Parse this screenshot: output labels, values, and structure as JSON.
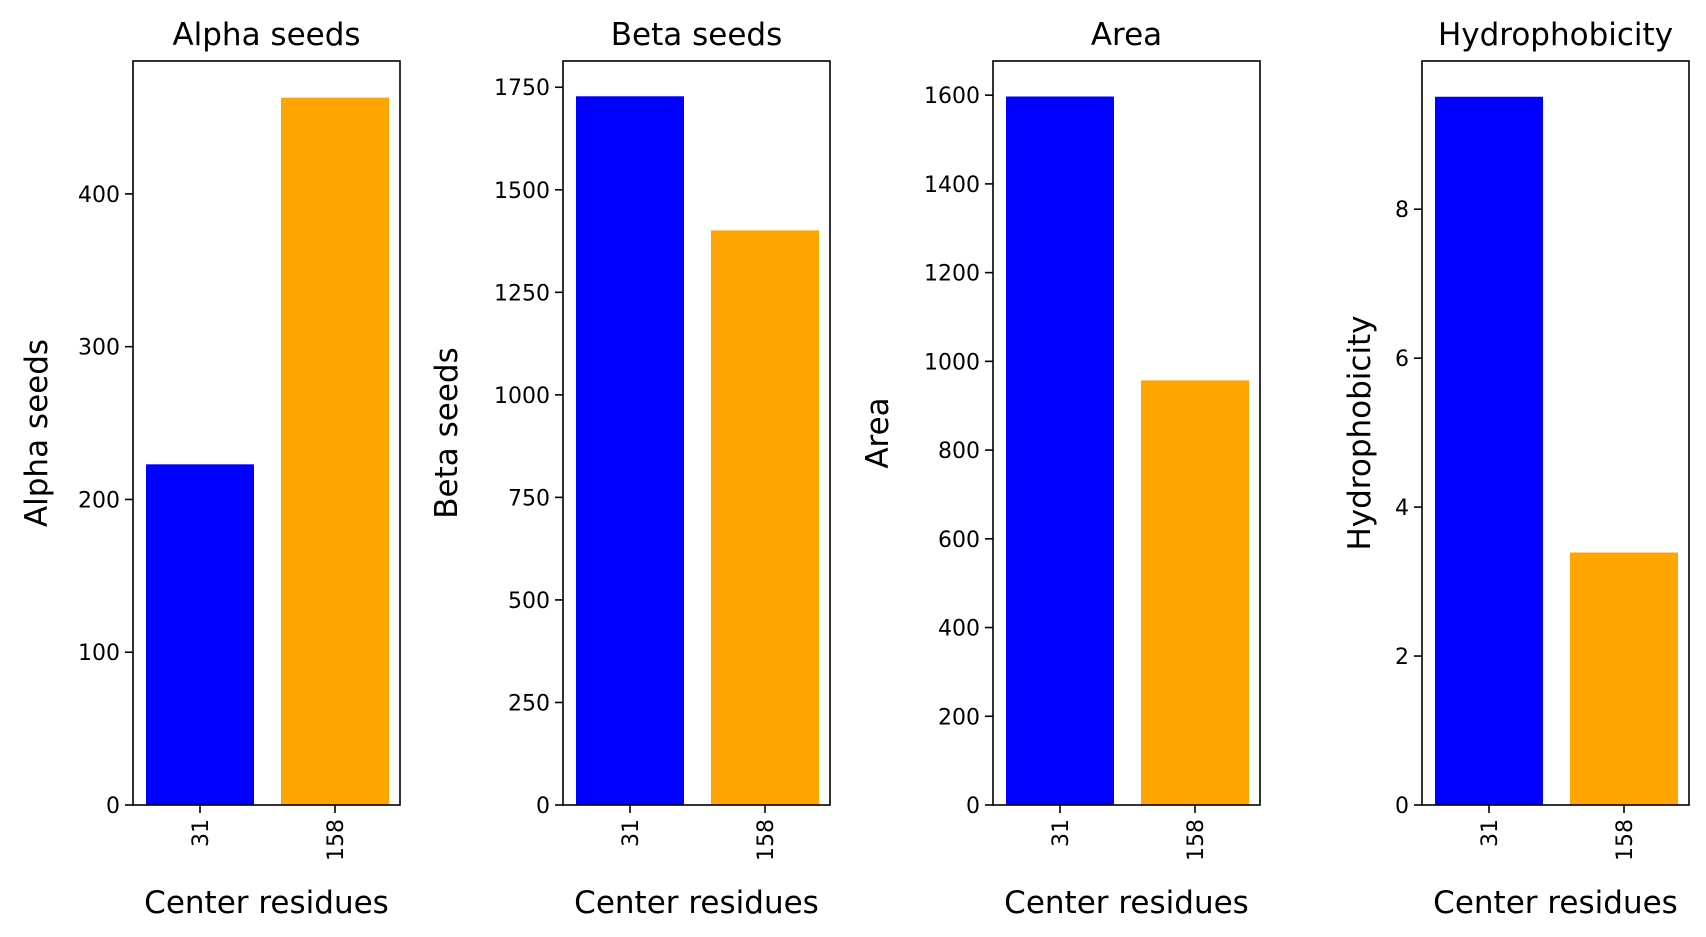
{
  "chart_data": [
    {
      "type": "bar",
      "title": "Alpha seeds",
      "xlabel": "Center residues",
      "ylabel": "Alpha seeds",
      "categories": [
        "31",
        "158"
      ],
      "values": [
        223,
        463
      ],
      "colors": [
        "#0000ff",
        "#ffa500"
      ],
      "ylim": [
        0,
        487
      ],
      "yticks": [
        0,
        100,
        200,
        300,
        400
      ],
      "grid": false
    },
    {
      "type": "bar",
      "title": "Beta seeds",
      "xlabel": "Center residues",
      "ylabel": "Beta seeds",
      "categories": [
        "31",
        "158"
      ],
      "values": [
        1728,
        1401
      ],
      "colors": [
        "#0000ff",
        "#ffa500"
      ],
      "ylim": [
        0,
        1814
      ],
      "yticks": [
        0,
        250,
        500,
        750,
        1000,
        1250,
        1500,
        1750
      ],
      "grid": false
    },
    {
      "type": "bar",
      "title": "Area",
      "xlabel": "Center residues",
      "ylabel": "Area",
      "categories": [
        "31",
        "158"
      ],
      "values": [
        1597,
        957
      ],
      "colors": [
        "#0000ff",
        "#ffa500"
      ],
      "ylim": [
        0,
        1677
      ],
      "yticks": [
        0,
        200,
        400,
        600,
        800,
        1000,
        1200,
        1400,
        1600
      ],
      "grid": false
    },
    {
      "type": "bar",
      "title": "Hydrophobicity",
      "xlabel": "Center residues",
      "ylabel": "Hydrophobicity",
      "categories": [
        "31",
        "158"
      ],
      "values": [
        9.51,
        3.39
      ],
      "colors": [
        "#0000ff",
        "#ffa500"
      ],
      "ylim": [
        0,
        9.99
      ],
      "yticks": [
        0,
        2,
        4,
        6,
        8
      ],
      "grid": false
    }
  ]
}
